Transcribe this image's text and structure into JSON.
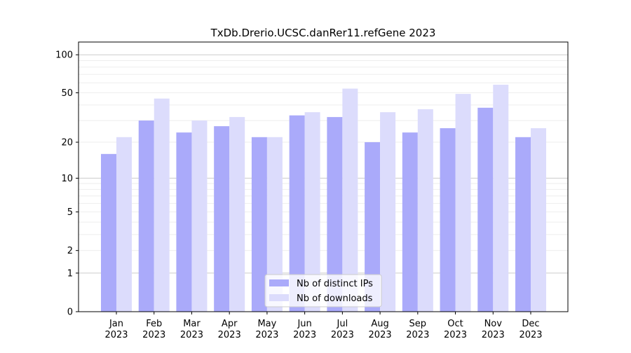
{
  "chart_data": {
    "type": "bar",
    "title": "TxDb.Drerio.UCSC.danRer11.refGene 2023",
    "xlabel": "",
    "ylabel": "",
    "yscale": "log10(1+y)",
    "ylim": [
      0,
      126
    ],
    "yticks": [
      0,
      1,
      2,
      5,
      10,
      20,
      50,
      100
    ],
    "grid": true,
    "legend_position": "bottom-center",
    "categories": [
      "Jan\n2023",
      "Feb\n2023",
      "Mar\n2023",
      "Apr\n2023",
      "May\n2023",
      "Jun\n2023",
      "Jul\n2023",
      "Aug\n2023",
      "Sep\n2023",
      "Oct\n2023",
      "Nov\n2023",
      "Dec\n2023"
    ],
    "series": [
      {
        "name": "Nb of distinct IPs",
        "color": "#aaaafa",
        "values": [
          16,
          30,
          24,
          27,
          22,
          33,
          32,
          20,
          24,
          26,
          38,
          22
        ]
      },
      {
        "name": "Nb of downloads",
        "color": "#dcdcfc",
        "values": [
          22,
          45,
          30,
          32,
          22,
          35,
          54,
          35,
          37,
          49,
          58,
          26
        ]
      }
    ]
  }
}
